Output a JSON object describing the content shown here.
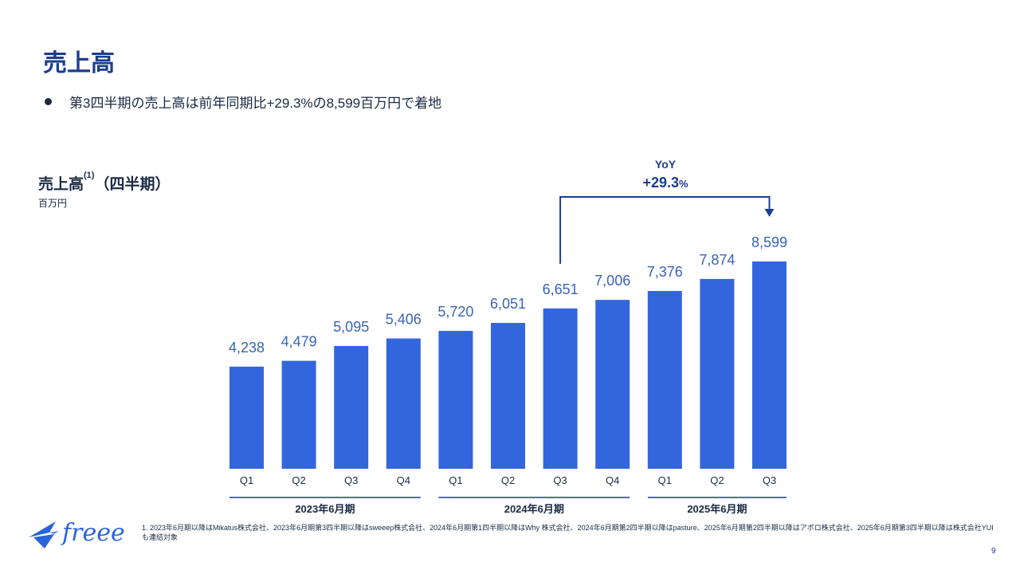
{
  "page": {
    "title": "売上高",
    "bullet": "第3四半期の売上高は前年同期比+29.3%の8,599百万円で着地",
    "page_number": "9",
    "footnote": "1. 2023年6月期以降はMikatus株式会社、2023年6月期第3四半期以降はsweeep株式会社、2024年6月期第1四半期以降はWhy 株式会社、2024年6月期第2四半期以降はpasture、2025年6月期第2四半期以降はアポロ株式会社、2025年6月期第3四半期以降は株式会社YUIも連結対象"
  },
  "logo": {
    "text": "freee",
    "icon": "bird-icon"
  },
  "colors": {
    "bar": "#3366dd",
    "accent": "#1c3d8f",
    "value_label": "#3a63b8"
  },
  "chart_data": {
    "type": "bar",
    "title": "売上高",
    "title_superscript": "(1)",
    "title_suffix": "（四半期）",
    "unit": "百万円",
    "categories": [
      "Q1",
      "Q2",
      "Q3",
      "Q4",
      "Q1",
      "Q2",
      "Q3",
      "Q4",
      "Q1",
      "Q2",
      "Q3"
    ],
    "values": [
      4238,
      4479,
      5095,
      5406,
      5720,
      6051,
      6651,
      7006,
      7376,
      7874,
      8599
    ],
    "value_labels": [
      "4,238",
      "4,479",
      "5,095",
      "5,406",
      "5,720",
      "6,051",
      "6,651",
      "7,006",
      "7,376",
      "7,874",
      "8,599"
    ],
    "groups": [
      {
        "label": "2023年6月期",
        "start": 0,
        "end": 3
      },
      {
        "label": "2024年6月期",
        "start": 4,
        "end": 7
      },
      {
        "label": "2025年6月期",
        "start": 8,
        "end": 10
      }
    ],
    "annotation": {
      "label": "YoY",
      "value": "+29.3",
      "unit": "%",
      "from_index": 6,
      "to_index": 10
    },
    "ylim": [
      0,
      9000
    ],
    "grid": false
  }
}
